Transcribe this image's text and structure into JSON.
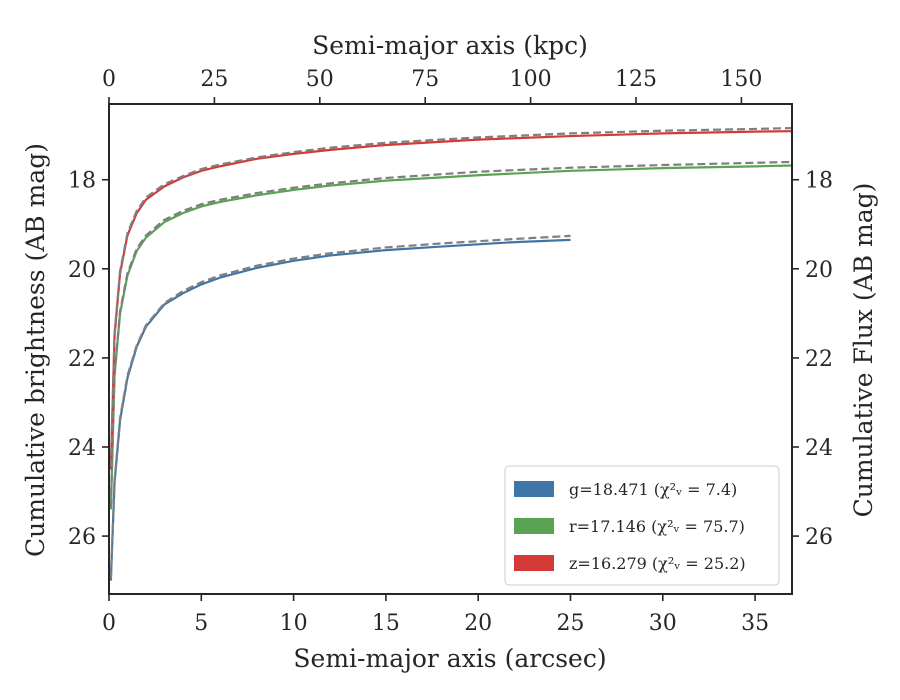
{
  "chart_data": {
    "type": "line",
    "title": "",
    "xlabel": "Semi-major axis (arcsec)",
    "x2label": "Semi-major axis (kpc)",
    "ylabel": "Cumulative brightness (AB mag)",
    "y2label": "Cumulative Flux (AB mag)",
    "xlim": [
      0,
      37
    ],
    "x2lim": [
      0,
      162
    ],
    "ylim": [
      27.3,
      16.3
    ],
    "y_inverted": true,
    "x_ticks": [
      0,
      5,
      10,
      15,
      20,
      25,
      30,
      35
    ],
    "x2_ticks": [
      0,
      25,
      50,
      75,
      100,
      125,
      150
    ],
    "y_ticks": [
      18,
      20,
      22,
      24,
      26
    ],
    "grid": false,
    "legend_position": "lower-right",
    "series": [
      {
        "name": "g=18.471",
        "band": "g",
        "chi_label": "(χ²ᵥ = 7.4)",
        "color": "#3f76a7",
        "x": [
          0.1,
          0.3,
          0.6,
          1,
          1.5,
          2,
          3,
          4,
          5,
          6,
          8,
          10,
          12,
          15,
          18,
          20,
          22,
          25
        ],
        "y": [
          27,
          24.8,
          23.4,
          22.45,
          21.75,
          21.3,
          20.8,
          20.55,
          20.35,
          20.2,
          19.98,
          19.82,
          19.7,
          19.58,
          19.5,
          19.45,
          19.4,
          19.35
        ],
        "model_x": [
          0.1,
          0.3,
          0.6,
          1,
          1.5,
          2,
          3,
          4,
          5,
          6,
          8,
          10,
          12,
          15,
          18,
          20,
          22,
          25
        ],
        "model_y": [
          26.95,
          24.75,
          23.35,
          22.4,
          21.72,
          21.27,
          20.77,
          20.5,
          20.3,
          20.15,
          19.93,
          19.77,
          19.65,
          19.52,
          19.43,
          19.38,
          19.33,
          19.26
        ]
      },
      {
        "name": "r=17.146",
        "band": "r",
        "chi_label": "(χ²ᵥ = 75.7)",
        "color": "#58a452",
        "x": [
          0.1,
          0.3,
          0.6,
          1,
          1.5,
          2,
          3,
          4,
          5,
          6,
          8,
          10,
          12,
          15,
          20,
          25,
          30,
          35,
          37
        ],
        "y": [
          25.4,
          22.4,
          21,
          20.15,
          19.6,
          19.3,
          18.95,
          18.75,
          18.6,
          18.5,
          18.35,
          18.23,
          18.13,
          18.02,
          17.9,
          17.8,
          17.74,
          17.7,
          17.68
        ],
        "model_x": [
          0.1,
          0.3,
          0.6,
          1,
          1.5,
          2,
          3,
          4,
          5,
          6,
          8,
          10,
          12,
          15,
          20,
          25,
          30,
          35,
          37
        ],
        "model_y": [
          25.35,
          22.35,
          20.95,
          20.1,
          19.55,
          19.25,
          18.9,
          18.7,
          18.55,
          18.45,
          18.3,
          18.18,
          18.08,
          17.96,
          17.82,
          17.73,
          17.67,
          17.62,
          17.6
        ]
      },
      {
        "name": "z=16.279",
        "band": "z",
        "chi_label": "(χ²ᵥ = 25.2)",
        "color": "#d43a37",
        "x": [
          0.1,
          0.3,
          0.6,
          1,
          1.5,
          2,
          3,
          4,
          5,
          6,
          8,
          10,
          12,
          15,
          20,
          25,
          30,
          35,
          37
        ],
        "y": [
          24.5,
          21.5,
          20.1,
          19.25,
          18.75,
          18.45,
          18.15,
          17.95,
          17.8,
          17.7,
          17.53,
          17.42,
          17.33,
          17.22,
          17.1,
          17.02,
          16.96,
          16.92,
          16.91
        ],
        "model_x": [
          0.1,
          0.3,
          0.6,
          1,
          1.5,
          2,
          3,
          4,
          5,
          6,
          8,
          10,
          12,
          15,
          20,
          25,
          30,
          35,
          37
        ],
        "model_y": [
          24.45,
          21.45,
          20.05,
          19.2,
          18.7,
          18.4,
          18.1,
          17.92,
          17.76,
          17.66,
          17.5,
          17.38,
          17.28,
          17.17,
          17.05,
          16.96,
          16.9,
          16.86,
          16.84
        ]
      }
    ],
    "model_line_color": "#7f7f7f"
  }
}
